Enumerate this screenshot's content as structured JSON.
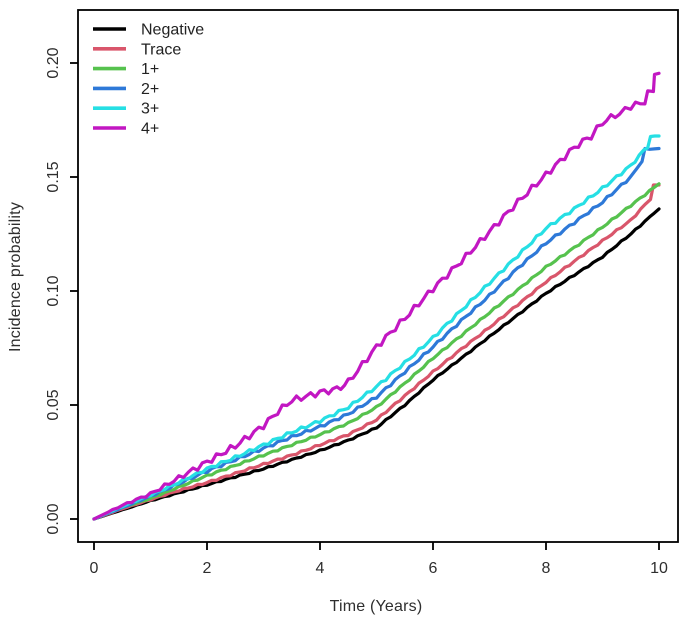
{
  "colors": {
    "background": "#ffffff",
    "axis": "#000000",
    "tick_text": "#2e2e2e",
    "legend_text": "#222222"
  },
  "chart_data": {
    "type": "line",
    "title": "",
    "xlabel": "Time (Years)",
    "ylabel": "Incidence probability",
    "xlim": [
      0,
      10
    ],
    "ylim": [
      0.0,
      0.2
    ],
    "xticks": [
      "0",
      "2",
      "4",
      "6",
      "8",
      "10"
    ],
    "yticks": [
      "0.00",
      "0.05",
      "0.10",
      "0.15",
      "0.20"
    ],
    "grid": false,
    "legend_position": "top-left",
    "series": [
      {
        "name": "Negative",
        "color": "#000000",
        "wobble": 0.0003,
        "points": [
          [
            0,
            0
          ],
          [
            0.5,
            0.004
          ],
          [
            1,
            0.008
          ],
          [
            1.5,
            0.0115
          ],
          [
            2,
            0.015
          ],
          [
            2.5,
            0.0185
          ],
          [
            3,
            0.022
          ],
          [
            3.5,
            0.026
          ],
          [
            4,
            0.03
          ],
          [
            4.5,
            0.0345
          ],
          [
            5,
            0.04
          ],
          [
            5.5,
            0.05
          ],
          [
            6,
            0.061
          ],
          [
            6.5,
            0.0705
          ],
          [
            7,
            0.08
          ],
          [
            7.5,
            0.0895
          ],
          [
            8,
            0.099
          ],
          [
            8.5,
            0.107
          ],
          [
            9,
            0.115
          ],
          [
            9.5,
            0.125
          ],
          [
            10,
            0.136
          ]
        ]
      },
      {
        "name": "Trace",
        "color": "#d9566b",
        "wobble": 0.0004,
        "points": [
          [
            0,
            0
          ],
          [
            0.5,
            0.0045
          ],
          [
            1,
            0.0085
          ],
          [
            1.5,
            0.0125
          ],
          [
            2,
            0.016
          ],
          [
            2.5,
            0.02
          ],
          [
            3,
            0.024
          ],
          [
            3.5,
            0.028
          ],
          [
            4,
            0.0325
          ],
          [
            4.5,
            0.037
          ],
          [
            5,
            0.0435
          ],
          [
            5.5,
            0.054
          ],
          [
            6,
            0.0645
          ],
          [
            6.5,
            0.0745
          ],
          [
            7,
            0.084
          ],
          [
            7.5,
            0.094
          ],
          [
            8,
            0.104
          ],
          [
            8.5,
            0.113
          ],
          [
            9,
            0.122
          ],
          [
            9.5,
            0.131
          ],
          [
            9.85,
            0.1405
          ],
          [
            9.9,
            0.1465
          ],
          [
            10,
            0.1465
          ]
        ]
      },
      {
        "name": "1+",
        "color": "#56c24e",
        "wobble": 0.0004,
        "points": [
          [
            0,
            0
          ],
          [
            0.5,
            0.005
          ],
          [
            1,
            0.009
          ],
          [
            1.5,
            0.014
          ],
          [
            2,
            0.019
          ],
          [
            2.5,
            0.0235
          ],
          [
            3,
            0.028
          ],
          [
            3.5,
            0.0325
          ],
          [
            4,
            0.037
          ],
          [
            4.5,
            0.042
          ],
          [
            5,
            0.049
          ],
          [
            5.5,
            0.0595
          ],
          [
            6,
            0.0705
          ],
          [
            6.5,
            0.0805
          ],
          [
            7,
            0.0905
          ],
          [
            7.5,
            0.1005
          ],
          [
            8,
            0.1105
          ],
          [
            8.5,
            0.119
          ],
          [
            9,
            0.128
          ],
          [
            9.5,
            0.1375
          ],
          [
            10,
            0.147
          ]
        ]
      },
      {
        "name": "2+",
        "color": "#2e79d8",
        "wobble": 0.0006,
        "points": [
          [
            0,
            0
          ],
          [
            0.5,
            0.005
          ],
          [
            1,
            0.01
          ],
          [
            1.5,
            0.0155
          ],
          [
            2,
            0.021
          ],
          [
            2.5,
            0.026
          ],
          [
            3,
            0.031
          ],
          [
            3.5,
            0.036
          ],
          [
            4,
            0.0405
          ],
          [
            4.5,
            0.046
          ],
          [
            5,
            0.0535
          ],
          [
            5.5,
            0.0645
          ],
          [
            6,
            0.0755
          ],
          [
            6.5,
            0.087
          ],
          [
            7,
            0.098
          ],
          [
            7.5,
            0.11
          ],
          [
            8,
            0.121
          ],
          [
            8.5,
            0.13
          ],
          [
            9,
            0.139
          ],
          [
            9.5,
            0.15
          ],
          [
            9.7,
            0.157
          ],
          [
            9.75,
            0.162
          ],
          [
            10,
            0.1625
          ]
        ]
      },
      {
        "name": "3+",
        "color": "#26dfe4",
        "wobble": 0.0007,
        "points": [
          [
            0,
            0
          ],
          [
            0.5,
            0.0055
          ],
          [
            1,
            0.0105
          ],
          [
            1.5,
            0.016
          ],
          [
            2,
            0.022
          ],
          [
            2.5,
            0.027
          ],
          [
            3,
            0.0325
          ],
          [
            3.5,
            0.038
          ],
          [
            4,
            0.043
          ],
          [
            4.5,
            0.049
          ],
          [
            5,
            0.058
          ],
          [
            5.5,
            0.0685
          ],
          [
            6,
            0.0795
          ],
          [
            6.5,
            0.0915
          ],
          [
            7,
            0.1035
          ],
          [
            7.5,
            0.1155
          ],
          [
            8,
            0.1275
          ],
          [
            8.5,
            0.136
          ],
          [
            9,
            0.145
          ],
          [
            9.5,
            0.155
          ],
          [
            9.8,
            0.1635
          ],
          [
            9.85,
            0.168
          ],
          [
            10,
            0.168
          ]
        ]
      },
      {
        "name": "4+",
        "color": "#c217c2",
        "wobble": 0.0014,
        "points": [
          [
            0,
            0
          ],
          [
            0.5,
            0.006
          ],
          [
            1,
            0.011
          ],
          [
            1.5,
            0.018
          ],
          [
            2,
            0.025
          ],
          [
            2.5,
            0.032
          ],
          [
            3,
            0.041
          ],
          [
            3.25,
            0.047
          ],
          [
            3.5,
            0.052
          ],
          [
            4,
            0.0555
          ],
          [
            4.3,
            0.057
          ],
          [
            4.5,
            0.06
          ],
          [
            5,
            0.0755
          ],
          [
            5.5,
            0.088
          ],
          [
            6,
            0.101
          ],
          [
            6.5,
            0.113
          ],
          [
            7,
            0.126
          ],
          [
            7.5,
            0.139
          ],
          [
            8,
            0.151
          ],
          [
            8.5,
            0.163
          ],
          [
            8.8,
            0.168
          ],
          [
            9,
            0.174
          ],
          [
            9.3,
            0.178
          ],
          [
            9.5,
            0.181
          ],
          [
            9.75,
            0.183
          ],
          [
            9.8,
            0.187
          ],
          [
            9.9,
            0.1875
          ],
          [
            9.92,
            0.195
          ],
          [
            10,
            0.1955
          ]
        ]
      }
    ]
  }
}
